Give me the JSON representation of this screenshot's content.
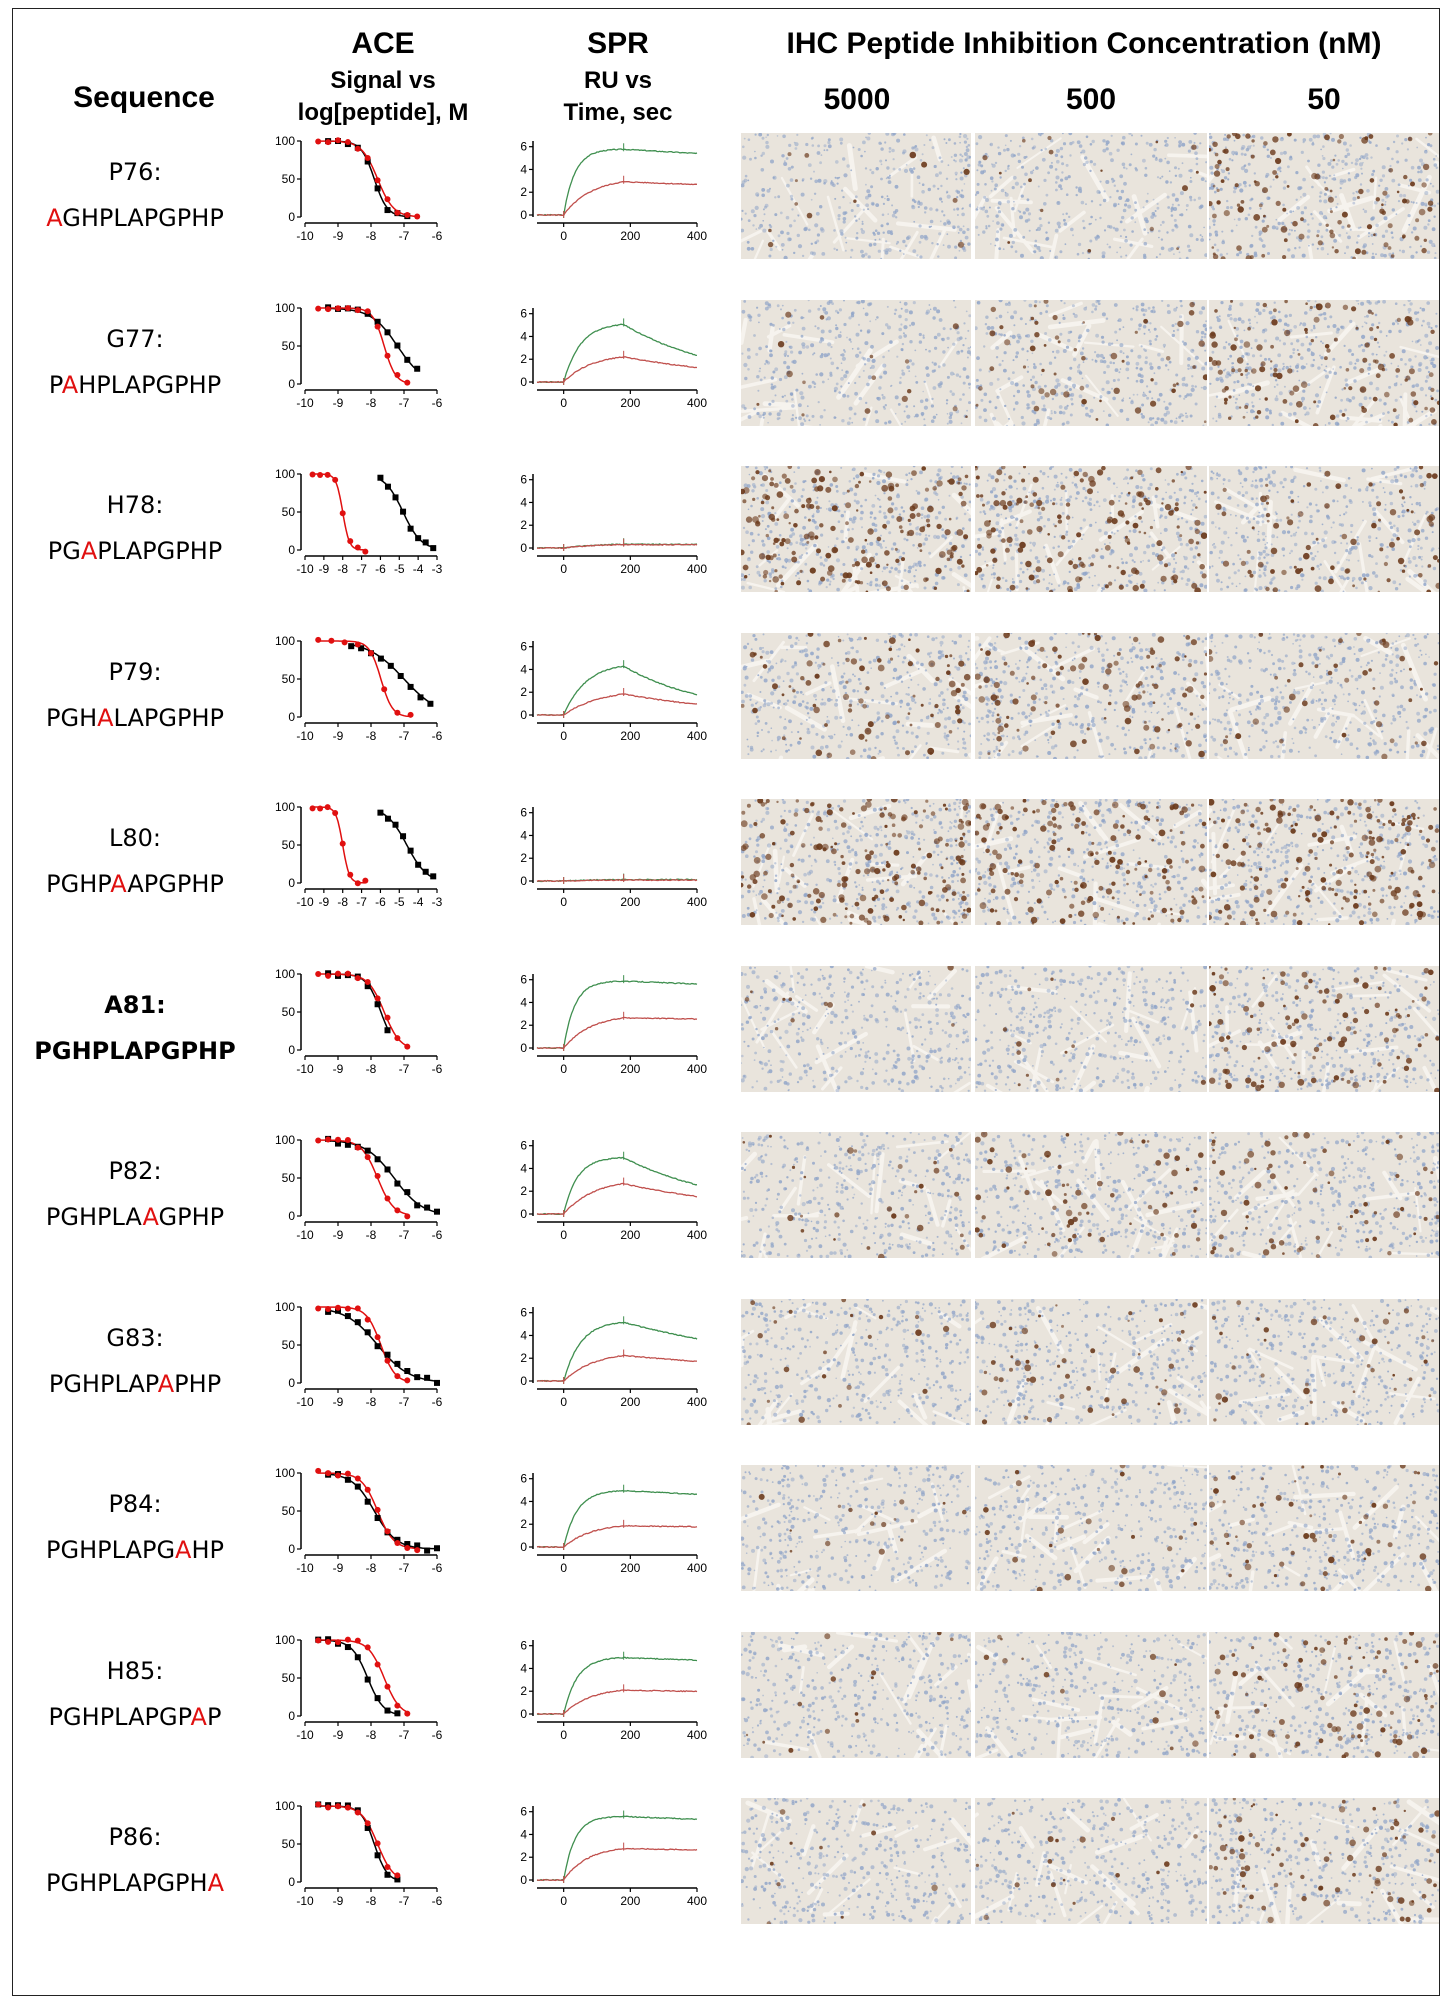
{
  "headers": {
    "sequence": "Sequence",
    "ace_title": "ACE",
    "ace_sub1": "Signal vs",
    "ace_sub2": "log[peptide], M",
    "spr_title": "SPR",
    "spr_sub1": "RU vs",
    "spr_sub2": "Time, sec",
    "ihc_title": "IHC Peptide Inhibition Concentration (nM)",
    "concentrations": [
      "5000",
      "500",
      "50"
    ]
  },
  "colors": {
    "mutation": "#e01010",
    "ace_red": "#e01010",
    "ace_black": "#000000",
    "spr_green": "#3f8f4f",
    "spr_red": "#c0504d",
    "ihc_background": "#e9e4dc",
    "ihc_nuclei": "#8fa4c8",
    "ihc_stain": "#6b3a1c"
  },
  "rows": [
    {
      "name": "P76:",
      "seq": "AGHPLAPGPHP",
      "mut_index": 0,
      "bold": false,
      "ace": {
        "xticks": [
          "-10",
          "-9",
          "-8",
          "-7",
          "-6"
        ],
        "xlim": [
          -10,
          -6
        ],
        "red_ic50": -7.8,
        "red_hill": 1.8,
        "black_ic50": -7.9,
        "black_hill": 2.2,
        "red_x": [
          -9.6,
          -9.3,
          -9.0,
          -8.7,
          -8.4,
          -8.1,
          -7.8,
          -7.5,
          -7.2,
          -6.9,
          -6.6
        ],
        "black_x": [
          -9.3,
          -9.0,
          -8.7,
          -8.4,
          -8.1,
          -7.8,
          -7.5,
          -7.2,
          -6.9
        ]
      },
      "spr": {
        "green_max": 5.8,
        "green_kon": 0.03,
        "green_koff": 0.0003,
        "red_max": 3.3,
        "red_kon": 0.012,
        "red_koff": 0.0004
      },
      "ihc": [
        0.05,
        0.06,
        0.45
      ]
    },
    {
      "name": "G77:",
      "seq": "PAHPLAPGPHP",
      "mut_index": 1,
      "bold": false,
      "ace": {
        "xticks": [
          "-10",
          "-9",
          "-8",
          "-7",
          "-6"
        ],
        "xlim": [
          -10,
          -6
        ],
        "red_ic50": -7.6,
        "red_hill": 2.5,
        "black_ic50": -7.2,
        "black_hill": 1.1,
        "red_x": [
          -9.6,
          -9.3,
          -9.0,
          -8.7,
          -8.4,
          -8.1,
          -7.8,
          -7.5,
          -7.2,
          -6.9
        ],
        "black_x": [
          -9.3,
          -9.0,
          -8.7,
          -8.4,
          -8.1,
          -7.8,
          -7.5,
          -7.2,
          -6.9,
          -6.6
        ]
      },
      "spr": {
        "green_max": 5.2,
        "green_kon": 0.02,
        "green_koff": 0.0035,
        "red_max": 2.5,
        "red_kon": 0.012,
        "red_koff": 0.0025
      },
      "ihc": [
        0.06,
        0.2,
        0.45
      ]
    },
    {
      "name": "H78:",
      "seq": "PGAPLAPGPHP",
      "mut_index": 2,
      "bold": false,
      "ace": {
        "xticks": [
          "-10",
          "-9",
          "-8",
          "-7",
          "-6",
          "-5",
          "-4",
          "-3"
        ],
        "xlim": [
          -10,
          -3
        ],
        "red_ic50": -8.0,
        "red_hill": 2.5,
        "black_ic50": -4.8,
        "black_hill": 0.9,
        "red_x": [
          -9.6,
          -9.2,
          -8.8,
          -8.4,
          -8.0,
          -7.6,
          -7.2,
          -6.8
        ],
        "black_x": [
          -6.0,
          -5.6,
          -5.2,
          -4.8,
          -4.4,
          -4.0,
          -3.6,
          -3.2
        ]
      },
      "spr": {
        "green_max": 0.4,
        "green_kon": 0.01,
        "green_koff": 0.0002,
        "red_max": 0.35,
        "red_kon": 0.01,
        "red_koff": 0.0002
      },
      "ihc": [
        0.7,
        0.6,
        0.3
      ]
    },
    {
      "name": "P79:",
      "seq": "PGHALAPGPHP",
      "mut_index": 3,
      "bold": false,
      "ace": {
        "xticks": [
          "-10",
          "-9",
          "-8",
          "-7",
          "-6"
        ],
        "xlim": [
          -10,
          -6
        ],
        "red_ic50": -7.7,
        "red_hill": 2.5,
        "black_ic50": -7.0,
        "black_hill": 0.8,
        "red_x": [
          -9.6,
          -9.2,
          -8.8,
          -8.4,
          -8.0,
          -7.6,
          -7.2,
          -6.8
        ],
        "black_x": [
          -8.6,
          -8.3,
          -8.0,
          -7.7,
          -7.4,
          -7.1,
          -6.8,
          -6.5,
          -6.2
        ]
      },
      "spr": {
        "green_max": 4.6,
        "green_kon": 0.015,
        "green_koff": 0.004,
        "red_max": 2.3,
        "red_kon": 0.009,
        "red_koff": 0.003
      },
      "ihc": [
        0.3,
        0.4,
        0.15
      ]
    },
    {
      "name": "L80:",
      "seq": "PGHPAAPGPHP",
      "mut_index": 4,
      "bold": false,
      "ace": {
        "xticks": [
          "-10",
          "-9",
          "-8",
          "-7",
          "-6",
          "-5",
          "-4",
          "-3"
        ],
        "xlim": [
          -10,
          -3
        ],
        "red_ic50": -8.0,
        "red_hill": 2.5,
        "black_ic50": -4.6,
        "black_hill": 0.8,
        "red_x": [
          -9.6,
          -9.2,
          -8.8,
          -8.4,
          -8.0,
          -7.6,
          -7.2,
          -6.8
        ],
        "black_x": [
          -6.0,
          -5.6,
          -5.2,
          -4.8,
          -4.4,
          -4.0,
          -3.6,
          -3.2
        ]
      },
      "spr": {
        "green_max": 0.15,
        "green_kon": 0.01,
        "green_koff": 0.0002,
        "red_max": 0.1,
        "red_kon": 0.01,
        "red_koff": 0.0002
      },
      "ihc": [
        0.7,
        0.6,
        0.7
      ]
    },
    {
      "name": "A81:",
      "seq": "PGHPLAPGPHP",
      "mut_index": -1,
      "bold": true,
      "ace": {
        "xticks": [
          "-10",
          "-9",
          "-8",
          "-7",
          "-6"
        ],
        "xlim": [
          -10,
          -6
        ],
        "red_ic50": -7.6,
        "red_hill": 1.8,
        "black_ic50": -7.7,
        "black_hill": 2.0,
        "red_x": [
          -9.6,
          -9.3,
          -9.0,
          -8.7,
          -8.4,
          -8.1,
          -7.8,
          -7.5,
          -7.2,
          -6.9
        ],
        "black_x": [
          -9.3,
          -9.0,
          -8.7,
          -8.4,
          -8.1,
          -7.8,
          -7.5
        ]
      },
      "spr": {
        "green_max": 5.9,
        "green_kon": 0.03,
        "green_koff": 0.0002,
        "red_max": 3.0,
        "red_kon": 0.012,
        "red_koff": 0.0002
      },
      "ihc": [
        0.04,
        0.05,
        0.4
      ]
    },
    {
      "name": "P82:",
      "seq": "PGHPLAAGPHP",
      "mut_index": 6,
      "bold": false,
      "ace": {
        "xticks": [
          "-10",
          "-9",
          "-8",
          "-7",
          "-6"
        ],
        "xlim": [
          -10,
          -6
        ],
        "red_ic50": -7.8,
        "red_hill": 1.8,
        "black_ic50": -7.3,
        "black_hill": 1.0,
        "red_x": [
          -9.6,
          -9.3,
          -9.0,
          -8.7,
          -8.4,
          -8.1,
          -7.8,
          -7.5,
          -7.2,
          -6.9
        ],
        "black_x": [
          -9.3,
          -9.0,
          -8.7,
          -8.4,
          -8.1,
          -7.8,
          -7.5,
          -7.2,
          -6.9,
          -6.6,
          -6.3,
          -6.0
        ]
      },
      "spr": {
        "green_max": 5.0,
        "green_kon": 0.025,
        "green_koff": 0.003,
        "red_max": 3.1,
        "red_kon": 0.011,
        "red_koff": 0.0025
      },
      "ihc": [
        0.1,
        0.25,
        0.25
      ]
    },
    {
      "name": "G83:",
      "seq": "PGHPLAPAPHP",
      "mut_index": 7,
      "bold": false,
      "ace": {
        "xticks": [
          "-10",
          "-9",
          "-8",
          "-7",
          "-6"
        ],
        "xlim": [
          -10,
          -6
        ],
        "red_ic50": -7.7,
        "red_hill": 2.0,
        "black_ic50": -7.8,
        "black_hill": 0.9,
        "red_x": [
          -9.6,
          -9.3,
          -9.0,
          -8.7,
          -8.4,
          -8.1,
          -7.8,
          -7.5,
          -7.2,
          -6.9
        ],
        "black_x": [
          -9.3,
          -9.0,
          -8.7,
          -8.4,
          -8.1,
          -7.8,
          -7.5,
          -7.2,
          -6.9,
          -6.6,
          -6.3,
          -6.0
        ]
      },
      "spr": {
        "green_max": 5.3,
        "green_kon": 0.02,
        "green_koff": 0.0015,
        "red_max": 2.6,
        "red_kon": 0.011,
        "red_koff": 0.0012
      },
      "ihc": [
        0.08,
        0.2,
        0.15
      ]
    },
    {
      "name": "P84:",
      "seq": "PGHPLAPGAHP",
      "mut_index": 8,
      "bold": false,
      "ace": {
        "xticks": [
          "-10",
          "-9",
          "-8",
          "-7",
          "-6"
        ],
        "xlim": [
          -10,
          -6
        ],
        "red_ic50": -7.8,
        "red_hill": 1.8,
        "black_ic50": -7.9,
        "black_hill": 1.3,
        "red_x": [
          -9.6,
          -9.3,
          -9.0,
          -8.7,
          -8.4,
          -8.1,
          -7.8,
          -7.5,
          -7.2,
          -6.9,
          -6.6
        ],
        "black_x": [
          -9.3,
          -9.0,
          -8.7,
          -8.4,
          -8.1,
          -7.8,
          -7.5,
          -7.2,
          -6.9,
          -6.6,
          -6.3,
          -6.0
        ]
      },
      "spr": {
        "green_max": 5.0,
        "green_kon": 0.025,
        "green_koff": 0.0003,
        "red_max": 2.1,
        "red_kon": 0.012,
        "red_koff": 0.0002
      },
      "ihc": [
        0.06,
        0.08,
        0.2
      ]
    },
    {
      "name": "H85:",
      "seq": "PGHPLAPGPAP",
      "mut_index": 9,
      "bold": false,
      "ace": {
        "xticks": [
          "-10",
          "-9",
          "-8",
          "-7",
          "-6"
        ],
        "xlim": [
          -10,
          -6
        ],
        "red_ic50": -7.6,
        "red_hill": 1.8,
        "black_ic50": -8.1,
        "black_hill": 1.8,
        "red_x": [
          -9.6,
          -9.3,
          -9.0,
          -8.7,
          -8.4,
          -8.1,
          -7.8,
          -7.5,
          -7.2,
          -6.9
        ],
        "black_x": [
          -9.6,
          -9.3,
          -9.0,
          -8.7,
          -8.4,
          -8.1,
          -7.8,
          -7.5,
          -7.2
        ]
      },
      "spr": {
        "green_max": 5.0,
        "green_kon": 0.025,
        "green_koff": 0.0002,
        "red_max": 2.3,
        "red_kon": 0.013,
        "red_koff": 0.0002
      },
      "ihc": [
        0.05,
        0.05,
        0.35
      ]
    },
    {
      "name": "P86:",
      "seq": "PGHPLAPGPHA",
      "mut_index": 10,
      "bold": false,
      "ace": {
        "xticks": [
          "-10",
          "-9",
          "-8",
          "-7",
          "-6"
        ],
        "xlim": [
          -10,
          -6
        ],
        "red_ic50": -7.8,
        "red_hill": 1.8,
        "black_ic50": -7.9,
        "black_hill": 2.2,
        "red_x": [
          -9.6,
          -9.3,
          -9.0,
          -8.7,
          -8.4,
          -8.1,
          -7.8,
          -7.5,
          -7.2
        ],
        "black_x": [
          -9.6,
          -9.3,
          -9.0,
          -8.7,
          -8.4,
          -8.1,
          -7.8,
          -7.5,
          -7.2
        ]
      },
      "spr": {
        "green_max": 5.6,
        "green_kon": 0.03,
        "green_koff": 0.0002,
        "red_max": 3.0,
        "red_kon": 0.014,
        "red_koff": 0.0002
      },
      "ihc": [
        0.04,
        0.06,
        0.3
      ]
    }
  ],
  "ace_axis": {
    "yticks": [
      "0",
      "50",
      "100"
    ],
    "ylim": [
      0,
      100
    ]
  },
  "spr_axis": {
    "xticks": [
      "0",
      "200",
      "400"
    ],
    "xlim": [
      -80,
      400
    ],
    "yticks": [
      "0",
      "2",
      "4",
      "6"
    ],
    "ylim": [
      0,
      6.5
    ],
    "injection_end": 180
  }
}
